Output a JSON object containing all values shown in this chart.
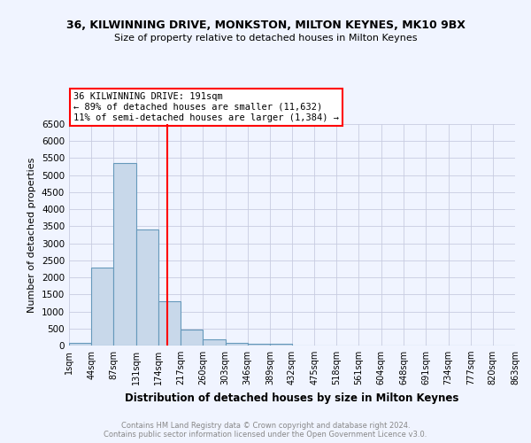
{
  "title1": "36, KILWINNING DRIVE, MONKSTON, MILTON KEYNES, MK10 9BX",
  "title2": "Size of property relative to detached houses in Milton Keynes",
  "xlabel": "Distribution of detached houses by size in Milton Keynes",
  "ylabel": "Number of detached properties",
  "bin_edges": [
    1,
    44,
    87,
    131,
    174,
    217,
    260,
    303,
    346,
    389,
    432,
    475,
    518,
    561,
    604,
    648,
    691,
    734,
    777,
    820,
    863
  ],
  "bin_labels": [
    "1sqm",
    "44sqm",
    "87sqm",
    "131sqm",
    "174sqm",
    "217sqm",
    "260sqm",
    "303sqm",
    "346sqm",
    "389sqm",
    "432sqm",
    "475sqm",
    "518sqm",
    "561sqm",
    "604sqm",
    "648sqm",
    "691sqm",
    "734sqm",
    "777sqm",
    "820sqm",
    "863sqm"
  ],
  "bar_heights": [
    75,
    2300,
    5350,
    3400,
    1300,
    480,
    190,
    90,
    50,
    40,
    10,
    5,
    0,
    0,
    0,
    0,
    0,
    0,
    0,
    0
  ],
  "bar_color": "#c8d8ea",
  "bar_edge_color": "#6699bb",
  "property_line_x": 191,
  "property_line_color": "red",
  "annotation_line1": "36 KILWINNING DRIVE: 191sqm",
  "annotation_line2": "← 89% of detached houses are smaller (11,632)",
  "annotation_line3": "11% of semi-detached houses are larger (1,384) →",
  "annotation_box_color": "white",
  "annotation_box_edge_color": "red",
  "ylim": [
    0,
    6500
  ],
  "yticks": [
    0,
    500,
    1000,
    1500,
    2000,
    2500,
    3000,
    3500,
    4000,
    4500,
    5000,
    5500,
    6000,
    6500
  ],
  "footer_text": "Contains HM Land Registry data © Crown copyright and database right 2024.\nContains public sector information licensed under the Open Government Licence v3.0.",
  "background_color": "#f0f4ff",
  "grid_color": "#c8cce0"
}
